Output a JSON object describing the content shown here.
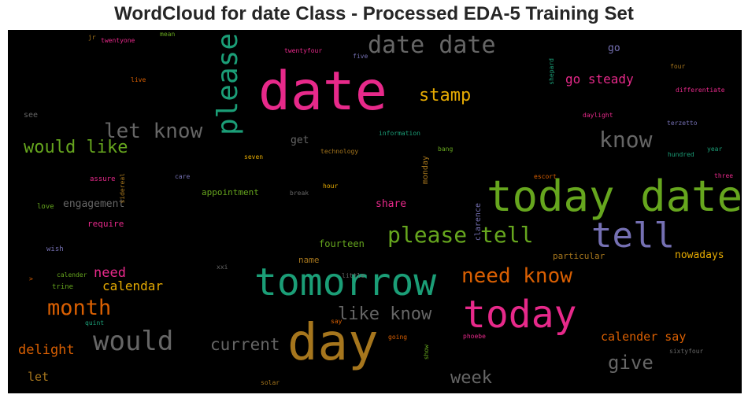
{
  "chart_data": {
    "type": "wordcloud",
    "title": "WordCloud for date Class - Processed EDA-5 Training Set",
    "background": "#000000",
    "words": [
      {
        "text": "date",
        "color": "#e7298a"
      },
      {
        "text": "today date",
        "color": "#66a61e"
      },
      {
        "text": "day",
        "color": "#a6761d"
      },
      {
        "text": "tomorrow",
        "color": "#1b9e77"
      },
      {
        "text": "today",
        "color": "#e7298a"
      },
      {
        "text": "tell",
        "color": "#7570b3"
      },
      {
        "text": "please",
        "color": "#1b9e77"
      },
      {
        "text": "date date",
        "color": "#666666"
      },
      {
        "text": "would",
        "color": "#666666"
      },
      {
        "text": "please tell",
        "color": "#66a61e"
      },
      {
        "text": "let know",
        "color": "#666666"
      },
      {
        "text": "know",
        "color": "#666666"
      },
      {
        "text": "need know",
        "color": "#d95f02"
      },
      {
        "text": "month",
        "color": "#d95f02"
      },
      {
        "text": "would like",
        "color": "#66a61e"
      },
      {
        "text": "stamp",
        "color": "#e6ab02"
      },
      {
        "text": "like know",
        "color": "#666666"
      },
      {
        "text": "current",
        "color": "#666666"
      },
      {
        "text": "give",
        "color": "#666666"
      },
      {
        "text": "week",
        "color": "#666666"
      },
      {
        "text": "go steady",
        "color": "#e7298a"
      },
      {
        "text": "calendar",
        "color": "#e6ab02"
      },
      {
        "text": "need",
        "color": "#e7298a"
      },
      {
        "text": "calender say",
        "color": "#d95f02"
      },
      {
        "text": "delight",
        "color": "#d95f02"
      },
      {
        "text": "let",
        "color": "#a6761d"
      },
      {
        "text": "engagement",
        "color": "#666666"
      },
      {
        "text": "fourteen",
        "color": "#66a61e"
      },
      {
        "text": "share",
        "color": "#e7298a"
      },
      {
        "text": "appointment",
        "color": "#66a61e"
      },
      {
        "text": "nowadays",
        "color": "#e6ab02"
      },
      {
        "text": "particular",
        "color": "#a6761d"
      },
      {
        "text": "require",
        "color": "#e7298a"
      },
      {
        "text": "name",
        "color": "#a6761d"
      },
      {
        "text": "get",
        "color": "#666666"
      },
      {
        "text": "go",
        "color": "#7570b3"
      },
      {
        "text": "clarence",
        "color": "#7570b3"
      },
      {
        "text": "monday",
        "color": "#a6761d"
      },
      {
        "text": "shepard",
        "color": "#1b9e77"
      },
      {
        "text": "see",
        "color": "#666666"
      },
      {
        "text": "love",
        "color": "#66a61e"
      },
      {
        "text": "wish",
        "color": "#7570b3"
      },
      {
        "text": "calender",
        "color": "#66a61e"
      },
      {
        "text": "trine",
        "color": "#66a61e"
      },
      {
        "text": "quint",
        "color": "#1b9e77"
      },
      {
        "text": "assure",
        "color": "#e7298a"
      },
      {
        "text": "sidereal",
        "color": "#a6761d"
      },
      {
        "text": "care",
        "color": "#7570b3"
      },
      {
        "text": "seven",
        "color": "#e6ab02"
      },
      {
        "text": "technology",
        "color": "#a6761d"
      },
      {
        "text": "information",
        "color": "#1b9e77"
      },
      {
        "text": "bang",
        "color": "#66a61e"
      },
      {
        "text": "hour",
        "color": "#e6ab02"
      },
      {
        "text": "break",
        "color": "#666666"
      },
      {
        "text": "escort",
        "color": "#d95f02"
      },
      {
        "text": "daylight",
        "color": "#e7298a"
      },
      {
        "text": "terzetto",
        "color": "#7570b3"
      },
      {
        "text": "hundred",
        "color": "#1b9e77"
      },
      {
        "text": "year",
        "color": "#1b9e77"
      },
      {
        "text": "three",
        "color": "#e7298a"
      },
      {
        "text": "differentiate",
        "color": "#e7298a"
      },
      {
        "text": "four",
        "color": "#a6761d"
      },
      {
        "text": "five",
        "color": "#7570b3"
      },
      {
        "text": "twentyfour",
        "color": "#e7298a"
      },
      {
        "text": "twentyone",
        "color": "#e7298a"
      },
      {
        "text": "mean",
        "color": "#66a61e"
      },
      {
        "text": "jr",
        "color": "#a6761d"
      },
      {
        "text": "live",
        "color": "#d95f02"
      },
      {
        "text": "xxi",
        "color": "#666666"
      },
      {
        "text": "little",
        "color": "#666666"
      },
      {
        "text": "say",
        "color": "#d95f02"
      },
      {
        "text": "going",
        "color": "#d95f02"
      },
      {
        "text": "show",
        "color": "#66a61e"
      },
      {
        "text": "phoebe",
        "color": "#e7298a"
      },
      {
        "text": "sixtyfour",
        "color": "#666666"
      },
      {
        "text": "solar",
        "color": "#a6761d"
      },
      {
        "text": ">",
        "color": "#d95f02"
      }
    ]
  }
}
